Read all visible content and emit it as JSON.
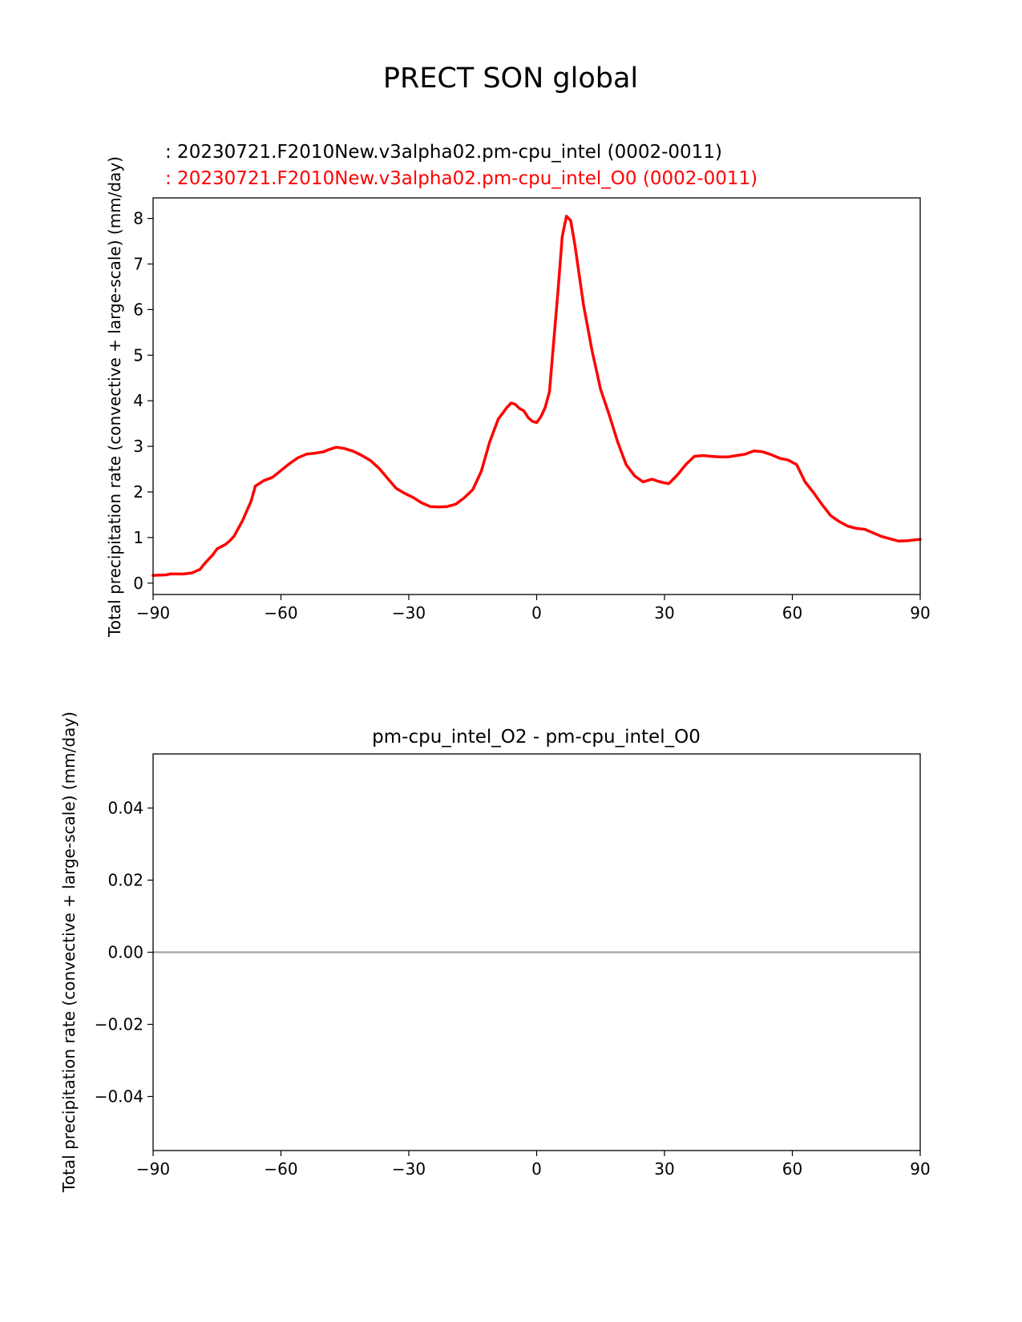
{
  "figure": {
    "title": "PRECT SON global"
  },
  "chart_data": [
    {
      "type": "line",
      "title": "",
      "legend": [
        {
          "label": ": 20230721.F2010New.v3alpha02.pm-cpu_intel (0002-0011)",
          "color": "#000000"
        },
        {
          "label": ": 20230721.F2010New.v3alpha02.pm-cpu_intel_O0 (0002-0011)",
          "color": "#ff0000"
        }
      ],
      "xlabel": "",
      "ylabel": "Total precipitation rate (convective + large-scale) (mm/day)",
      "xlim": [
        -90,
        90
      ],
      "ylim": [
        -0.25,
        8.45
      ],
      "xticks": [
        -90,
        -60,
        -30,
        0,
        30,
        60,
        90
      ],
      "xtick_labels": [
        "−90",
        "−60",
        "−30",
        "0",
        "30",
        "60",
        "90"
      ],
      "yticks": [
        0,
        1,
        2,
        3,
        4,
        5,
        6,
        7,
        8
      ],
      "ytick_labels": [
        "0",
        "1",
        "2",
        "3",
        "4",
        "5",
        "6",
        "7",
        "8"
      ],
      "grid": false,
      "series": [
        {
          "color": "#ff0000",
          "x": [
            -90,
            -87,
            -86,
            -83,
            -81,
            -79,
            -78,
            -76,
            -75,
            -73,
            -72,
            -71,
            -69,
            -67,
            -66,
            -64,
            -62,
            -60,
            -58,
            -56,
            -54,
            -52,
            -50,
            -49,
            -47,
            -45,
            -43,
            -41,
            -39,
            -37,
            -35,
            -33,
            -31,
            -29,
            -27,
            -25,
            -23,
            -21,
            -19,
            -17,
            -15,
            -13,
            -11,
            -9,
            -7,
            -6,
            -5,
            -4,
            -3,
            -2,
            -1,
            0,
            1,
            2,
            3,
            4,
            5,
            6,
            7,
            8,
            9,
            11,
            13,
            15,
            17,
            19,
            21,
            23,
            25,
            27,
            29,
            31,
            33,
            35,
            37,
            39,
            41,
            43,
            45,
            47,
            49,
            51,
            53,
            55,
            57,
            59,
            61,
            63,
            65,
            67,
            69,
            71,
            73,
            75,
            77,
            79,
            81,
            83,
            85,
            87,
            89,
            90
          ],
          "values": [
            0.17,
            0.18,
            0.2,
            0.2,
            0.22,
            0.3,
            0.42,
            0.62,
            0.75,
            0.85,
            0.93,
            1.03,
            1.37,
            1.8,
            2.13,
            2.25,
            2.32,
            2.47,
            2.62,
            2.75,
            2.83,
            2.85,
            2.88,
            2.92,
            2.98,
            2.95,
            2.89,
            2.8,
            2.69,
            2.52,
            2.3,
            2.08,
            1.97,
            1.88,
            1.76,
            1.68,
            1.67,
            1.68,
            1.73,
            1.87,
            2.05,
            2.45,
            3.1,
            3.6,
            3.85,
            3.95,
            3.92,
            3.83,
            3.78,
            3.63,
            3.55,
            3.52,
            3.65,
            3.85,
            4.2,
            5.3,
            6.4,
            7.6,
            8.05,
            7.95,
            7.4,
            6.1,
            5.1,
            4.25,
            3.7,
            3.1,
            2.6,
            2.35,
            2.22,
            2.28,
            2.22,
            2.18,
            2.37,
            2.6,
            2.78,
            2.8,
            2.78,
            2.77,
            2.77,
            2.8,
            2.83,
            2.9,
            2.88,
            2.82,
            2.74,
            2.7,
            2.6,
            2.22,
            1.98,
            1.72,
            1.48,
            1.35,
            1.25,
            1.2,
            1.18,
            1.1,
            1.02,
            0.97,
            0.92,
            0.93,
            0.95,
            0.96
          ]
        }
      ]
    },
    {
      "type": "line",
      "title": "pm-cpu_intel_O2 - pm-cpu_intel_O0",
      "xlabel": "",
      "ylabel": "Total precipitation rate (convective + large-scale) (mm/day)",
      "xlim": [
        -90,
        90
      ],
      "ylim": [
        -0.055,
        0.055
      ],
      "xticks": [
        -90,
        -60,
        -30,
        0,
        30,
        60,
        90
      ],
      "xtick_labels": [
        "−90",
        "−60",
        "−30",
        "0",
        "30",
        "60",
        "90"
      ],
      "yticks": [
        -0.04,
        -0.02,
        0.0,
        0.02,
        0.04
      ],
      "ytick_labels": [
        "−0.04",
        "−0.02",
        "0.00",
        "0.02",
        "0.04"
      ],
      "grid": false,
      "series": [
        {
          "color": "#000000",
          "x": [
            -90,
            90
          ],
          "values": [
            0.0,
            0.0
          ]
        },
        {
          "color": "#a0a0a0",
          "x": [
            -90,
            90
          ],
          "values": [
            0.0,
            0.0
          ]
        }
      ]
    }
  ]
}
